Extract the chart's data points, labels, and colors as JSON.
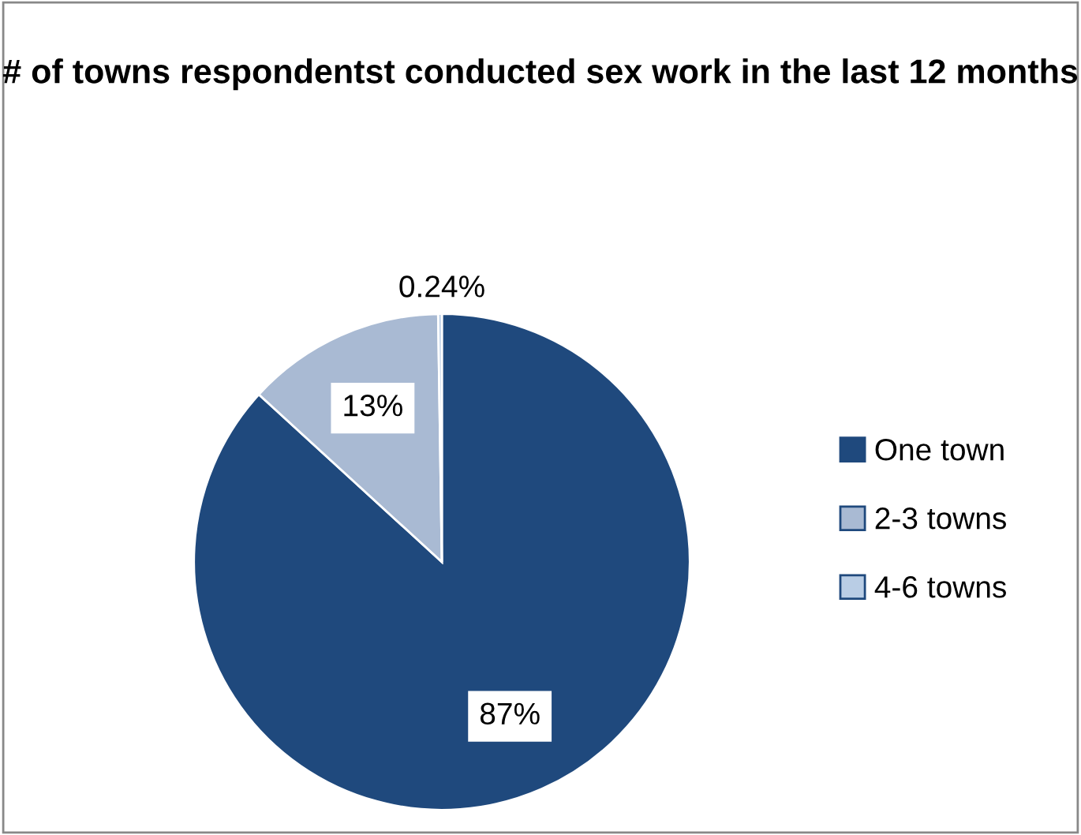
{
  "chart_data": {
    "type": "pie",
    "title": "# of towns respondentst conducted sex work in the last 12 months",
    "categories": [
      "One town",
      "2-3 towns",
      "4-6 towns"
    ],
    "values": [
      87,
      13,
      0.24
    ],
    "value_labels": [
      "87%",
      "13%",
      "0.24%"
    ],
    "colors": [
      "#1f497d",
      "#a9bad3",
      "#b9cde5"
    ],
    "legend": "right"
  }
}
